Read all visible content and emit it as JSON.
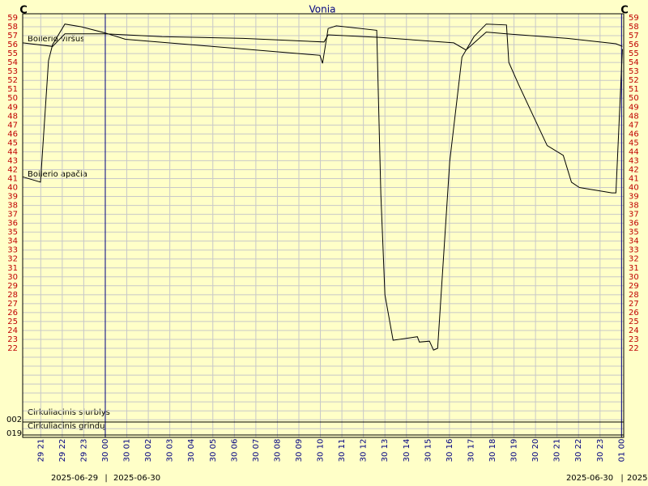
{
  "chart_data": {
    "type": "line",
    "title": "Vonia",
    "ylabel": "C",
    "y2label": "C",
    "ylim": [
      22,
      59
    ],
    "yticks": [
      22,
      23,
      24,
      25,
      26,
      27,
      28,
      29,
      30,
      31,
      32,
      33,
      34,
      35,
      36,
      37,
      38,
      39,
      40,
      41,
      42,
      43,
      44,
      45,
      46,
      47,
      48,
      49,
      50,
      51,
      52,
      53,
      54,
      55,
      56,
      57,
      58,
      59
    ],
    "y2lim": [
      22,
      59
    ],
    "y2ticks": [
      22,
      23,
      24,
      25,
      26,
      27,
      28,
      29,
      30,
      31,
      32,
      33,
      34,
      35,
      36,
      37,
      38,
      39,
      40,
      41,
      42,
      43,
      44,
      45,
      46,
      47,
      48,
      49,
      50,
      51,
      52,
      53,
      54,
      55,
      56,
      57,
      58,
      59
    ],
    "xlim": [
      20.16,
      48.1
    ],
    "xticks": [
      {
        "value": 21,
        "label": "29 21"
      },
      {
        "value": 22,
        "label": "29 22"
      },
      {
        "value": 23,
        "label": "29 23"
      },
      {
        "value": 24,
        "label": "30 00"
      },
      {
        "value": 25,
        "label": "30 01"
      },
      {
        "value": 26,
        "label": "30 02"
      },
      {
        "value": 27,
        "label": "30 03"
      },
      {
        "value": 28,
        "label": "30 04"
      },
      {
        "value": 29,
        "label": "30 05"
      },
      {
        "value": 30,
        "label": "30 06"
      },
      {
        "value": 31,
        "label": "30 07"
      },
      {
        "value": 32,
        "label": "30 08"
      },
      {
        "value": 33,
        "label": "30 09"
      },
      {
        "value": 34,
        "label": "30 10"
      },
      {
        "value": 35,
        "label": "30 11"
      },
      {
        "value": 36,
        "label": "30 12"
      },
      {
        "value": 37,
        "label": "30 13"
      },
      {
        "value": 38,
        "label": "30 14"
      },
      {
        "value": 39,
        "label": "30 15"
      },
      {
        "value": 40,
        "label": "30 16"
      },
      {
        "value": 41,
        "label": "30 17"
      },
      {
        "value": 42,
        "label": "30 18"
      },
      {
        "value": 43,
        "label": "30 19"
      },
      {
        "value": 44,
        "label": "30 20"
      },
      {
        "value": 45,
        "label": "30 21"
      },
      {
        "value": 46,
        "label": "30 22"
      },
      {
        "value": 47,
        "label": "30 23"
      },
      {
        "value": 48,
        "label": "01 00"
      }
    ],
    "day_lines": [
      24,
      48
    ],
    "grid": true,
    "series": [
      {
        "name": "Boilerio viršus",
        "color": "#000000",
        "x": [
          20.16,
          21.55,
          22.12,
          24,
          26.64,
          30.41,
          34.17,
          34.36,
          36.81,
          40.2,
          40.77,
          41.71,
          42.65,
          45.48,
          47.74,
          48.04
        ],
        "values": [
          56.2,
          55.8,
          57.2,
          57.2,
          56.9,
          56.7,
          56.3,
          57.1,
          56.8,
          56.2,
          55.4,
          57.4,
          57.2,
          56.7,
          56.1,
          55.8
        ]
      },
      {
        "name": "Boilerio apačia",
        "color": "#000000",
        "x": [
          20.16,
          20.99,
          21.36,
          21.55,
          22.12,
          22.87,
          24,
          24.94,
          33.98,
          34.1,
          34.36,
          34.74,
          36.62,
          36.81,
          37,
          37.38,
          38.51,
          38.6,
          39.07,
          39.26,
          39.45,
          40.01,
          40.58,
          41.14,
          41.71,
          42.65,
          42.76,
          43.22,
          44.54,
          45.29,
          45.67,
          46.04,
          47.55,
          47.74,
          48.04
        ],
        "values": [
          41.2,
          40.6,
          54.2,
          56,
          58.3,
          58,
          57.3,
          56.6,
          54.8,
          53.9,
          57.8,
          58.1,
          57.6,
          39.2,
          28,
          22.9,
          23.3,
          22.7,
          22.8,
          21.8,
          22,
          42.9,
          54.6,
          56.9,
          58.3,
          58.2,
          54,
          51.5,
          44.7,
          43.6,
          40.6,
          40,
          39.4,
          39.4,
          55.5
        ]
      }
    ],
    "digital_channels": [
      {
        "id": "002",
        "name": "Cirkuliacinis siurblys"
      },
      {
        "id": "019",
        "name": "Cirkuliacinis grindų"
      }
    ],
    "dates": [
      "2025-06-29",
      "2025-06-30",
      "2025-06-30",
      "2025"
    ]
  }
}
